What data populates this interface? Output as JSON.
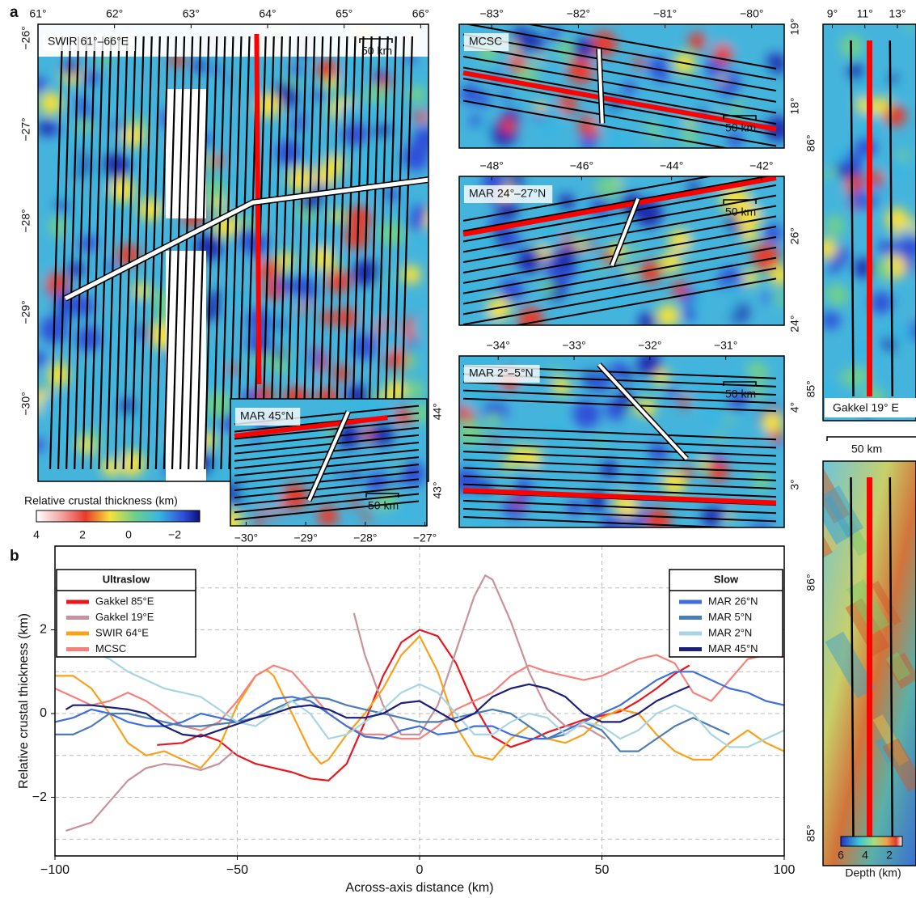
{
  "panel_a": {
    "label": "a",
    "maps": [
      {
        "title": "SWIR 61°–66°E",
        "top_ticks": [
          "61°",
          "62°",
          "63°",
          "64°",
          "65°",
          "66°"
        ],
        "left_ticks": [
          "−26°",
          "−27°",
          "−28°",
          "−29°",
          "−30°"
        ],
        "scale": "50 km"
      },
      {
        "title": "MAR 45°N",
        "bottom_ticks": [
          "−30°",
          "−29°",
          "−28°",
          "−27°"
        ],
        "right_ticks": [
          "44°",
          "43°"
        ],
        "scale": "50 km"
      },
      {
        "title": "MCSC",
        "top_ticks": [
          "−83°",
          "−82°",
          "−81°",
          "−80°"
        ],
        "right_ticks": [
          "19°",
          "18°"
        ],
        "scale": "50 km"
      },
      {
        "title": "MAR 24°–27°N",
        "top_ticks": [
          "−48°",
          "−46°",
          "−44°",
          "−42°"
        ],
        "right_ticks": [
          "26°",
          "24°"
        ],
        "scale": "50 km"
      },
      {
        "title": "MAR 2°–5°N",
        "top_ticks": [
          "−34°",
          "−33°",
          "−32°",
          "−31°"
        ],
        "right_ticks": [
          "4°",
          "3°"
        ],
        "scale": "50 km"
      },
      {
        "title": "Gakkel 19° E",
        "top_ticks": [
          "9°",
          "11°",
          "13°"
        ],
        "left_ticks": [
          "86°",
          "85°"
        ],
        "scale": "50 km"
      },
      {
        "left_ticks": [
          "86°",
          "85°"
        ]
      }
    ],
    "thickness_colorbar": {
      "title": "Relative crustal thickness (km)",
      "ticks": [
        "4",
        "2",
        "0",
        "−2"
      ]
    },
    "depth_colorbar": {
      "title": "Depth (km)",
      "ticks": [
        "6",
        "4",
        "2"
      ]
    }
  },
  "chart_data": {
    "type": "line",
    "panel_label": "b",
    "xlabel": "Across-axis distance (km)",
    "ylabel": "Relative crustal thickness (km)",
    "xlim": [
      -100,
      100
    ],
    "xticks": [
      {
        "value": -100,
        "label": "−100"
      },
      {
        "value": -50,
        "label": "−50"
      },
      0,
      50,
      100
    ],
    "ylim": [
      -3.4,
      4.0
    ],
    "yticks": [
      {
        "value": -2,
        "label": "−2"
      },
      0,
      2
    ],
    "yminor_grid": [
      -3,
      -1,
      1,
      3
    ],
    "grid": true,
    "series": [
      {
        "name": "Gakkel 85°E",
        "group": "Ultraslow",
        "color": "#e8171d",
        "x": [
          -72,
          -65,
          -60,
          -55,
          -50,
          -45,
          -40,
          -35,
          -30,
          -25,
          -20,
          -15,
          -10,
          -5,
          0,
          5,
          10,
          15,
          20,
          25,
          30,
          35,
          40,
          45,
          50,
          55,
          60,
          65,
          70,
          74
        ],
        "values": [
          -0.75,
          -0.7,
          -0.5,
          -0.65,
          -1.0,
          -1.2,
          -1.3,
          -1.4,
          -1.55,
          -1.6,
          -1.2,
          -0.2,
          0.9,
          1.7,
          2.0,
          1.85,
          1.2,
          0.2,
          -0.55,
          -0.8,
          -0.65,
          -0.45,
          -0.3,
          -0.15,
          -0.05,
          0.05,
          0.3,
          0.6,
          0.95,
          1.15
        ]
      },
      {
        "name": "Gakkel 19°E",
        "group": "Ultraslow",
        "color": "#c8919b",
        "x": [
          -97,
          -90,
          -85,
          -80,
          -75,
          -70,
          -65,
          -60,
          -55,
          -51,
          -34,
          -18,
          -15,
          -10,
          -5,
          0,
          5,
          10,
          15,
          18,
          20,
          25,
          30,
          35,
          40,
          45,
          51
        ],
        "values": [
          -2.8,
          -2.6,
          -2.1,
          -1.6,
          -1.3,
          -1.2,
          -1.25,
          -1.35,
          -1.2,
          -0.9,
          null,
          2.4,
          1.4,
          0.2,
          -0.5,
          -0.5,
          0.2,
          1.5,
          2.8,
          3.3,
          3.2,
          2.2,
          1.0,
          0.1,
          -0.3,
          -0.3,
          -0.6
        ]
      },
      {
        "name": "SWIR 64°E",
        "group": "Ultraslow",
        "color": "#f9a11b",
        "x": [
          -100,
          -95,
          -90,
          -85,
          -80,
          -75,
          -70,
          -65,
          -60,
          -55,
          -50,
          -45,
          -42,
          -40,
          -35,
          -30,
          -27,
          -25,
          -20,
          -15,
          -10,
          -5,
          0,
          5,
          10,
          15,
          20,
          25,
          30,
          35,
          40,
          45,
          50,
          55,
          60,
          65,
          70,
          75,
          80,
          85,
          90,
          95,
          100
        ],
        "values": [
          0.9,
          0.9,
          0.6,
          0.0,
          -0.7,
          -1.0,
          -0.9,
          -1.1,
          -1.3,
          -0.8,
          0.2,
          0.9,
          1.05,
          0.9,
          0.0,
          -0.9,
          -1.2,
          -1.1,
          -0.5,
          0.0,
          0.6,
          1.4,
          1.85,
          1.0,
          -0.3,
          -1.0,
          -1.1,
          -0.6,
          -0.3,
          -0.6,
          -0.7,
          -0.5,
          -0.1,
          0.1,
          0.0,
          -0.5,
          -0.9,
          -1.1,
          -1.1,
          -0.7,
          -0.4,
          -0.7,
          -0.9
        ]
      },
      {
        "name": "MCSC",
        "group": "Ultraslow",
        "color": "#f4827a",
        "x": [
          -100,
          -95,
          -90,
          -85,
          -80,
          -75,
          -70,
          -65,
          -60,
          -55,
          -50,
          -45,
          -40,
          -35,
          -30,
          -25,
          -20,
          -15,
          -10,
          -5,
          0,
          5,
          10,
          15,
          20,
          25,
          30,
          35,
          40,
          45,
          50,
          55,
          60,
          65,
          70,
          75,
          80,
          85,
          90,
          95,
          100
        ],
        "values": [
          0.6,
          0.4,
          0.2,
          0.3,
          0.5,
          0.3,
          0.0,
          -0.3,
          -0.4,
          -0.2,
          0.3,
          0.9,
          1.15,
          1.0,
          0.5,
          0.0,
          -0.3,
          -0.5,
          -0.5,
          -0.6,
          -0.6,
          -0.3,
          0.1,
          0.3,
          0.5,
          0.9,
          1.15,
          1.0,
          0.9,
          0.8,
          0.9,
          1.1,
          1.3,
          1.4,
          1.2,
          0.5,
          0.3,
          0.8,
          1.3,
          1.4,
          1.35
        ]
      },
      {
        "name": "MAR 26°N",
        "group": "Slow",
        "color": "#3f6fdc",
        "x": [
          -100,
          -95,
          -90,
          -85,
          -80,
          -75,
          -70,
          -65,
          -60,
          -55,
          -50,
          -45,
          -40,
          -35,
          -30,
          -25,
          -20,
          -15,
          -10,
          -5,
          0,
          5,
          10,
          15,
          20,
          25,
          30,
          35,
          40,
          45,
          50,
          55,
          60,
          65,
          70,
          75,
          80,
          85,
          90,
          95,
          100
        ],
        "values": [
          -0.2,
          -0.1,
          0.1,
          0.0,
          -0.2,
          -0.3,
          -0.3,
          -0.2,
          0.0,
          -0.1,
          -0.2,
          0.1,
          0.35,
          0.4,
          0.3,
          0.0,
          -0.3,
          -0.55,
          -0.6,
          -0.4,
          -0.3,
          -0.5,
          -0.45,
          -0.3,
          -0.3,
          -0.5,
          -0.6,
          -0.6,
          -0.4,
          -0.2,
          0.0,
          0.2,
          0.5,
          0.8,
          1.0,
          1.0,
          0.8,
          0.6,
          0.5,
          0.3,
          0.2
        ]
      },
      {
        "name": "MAR 5°N",
        "group": "Slow",
        "color": "#4a7db5",
        "x": [
          -100,
          -95,
          -90,
          -85,
          -80,
          -75,
          -70,
          -65,
          -60,
          -55,
          -50,
          -45,
          -40,
          -35,
          -30,
          -25,
          -20,
          -15,
          -10,
          -5,
          0,
          5,
          10,
          15,
          20,
          25,
          30,
          35,
          40,
          45,
          50,
          55,
          60,
          65,
          70,
          75,
          80,
          85
        ],
        "values": [
          -0.5,
          -0.5,
          -0.3,
          0.0,
          0.0,
          -0.1,
          -0.2,
          -0.3,
          -0.3,
          -0.25,
          -0.2,
          -0.1,
          0.1,
          0.3,
          0.4,
          0.35,
          0.2,
          0.1,
          0.0,
          -0.1,
          -0.2,
          -0.2,
          -0.1,
          0.0,
          0.1,
          0.0,
          -0.3,
          -0.6,
          -0.5,
          -0.2,
          -0.4,
          -0.9,
          -0.9,
          -0.6,
          -0.3,
          -0.1,
          -0.3,
          -0.5
        ]
      },
      {
        "name": "MAR 2°N",
        "group": "Slow",
        "color": "#a8d5e2",
        "x": [
          -100,
          -95,
          -90,
          -85,
          -80,
          -75,
          -70,
          -65,
          -60,
          -55,
          -50,
          -45,
          -40,
          -35,
          -30,
          -25,
          -20,
          -15,
          -10,
          -5,
          0,
          5,
          10,
          15,
          20,
          25,
          30,
          35,
          40,
          45,
          50,
          55,
          60,
          65,
          70,
          75,
          80,
          85,
          90,
          95,
          100
        ],
        "values": [
          1.35,
          1.4,
          1.5,
          1.3,
          1.0,
          0.8,
          0.6,
          0.5,
          0.4,
          0.1,
          -0.2,
          -0.3,
          0.0,
          0.3,
          0.0,
          -0.6,
          -0.5,
          -0.2,
          0.1,
          0.5,
          0.7,
          0.5,
          0.0,
          -0.5,
          -0.5,
          -0.2,
          0.0,
          -0.1,
          -0.5,
          -0.2,
          -0.3,
          -0.6,
          -0.4,
          0.0,
          0.2,
          0.0,
          -0.5,
          -0.8,
          -0.8,
          -0.6,
          -0.4
        ]
      },
      {
        "name": "MAR 45°N",
        "group": "Slow",
        "color": "#1a1f7a",
        "x": [
          -97,
          -95,
          -90,
          -85,
          -80,
          -75,
          -70,
          -65,
          -60,
          -55,
          -50,
          -45,
          -40,
          -35,
          -30,
          -25,
          -20,
          -15,
          -10,
          -5,
          0,
          5,
          10,
          15,
          20,
          25,
          30,
          35,
          40,
          45,
          50,
          55,
          60,
          65,
          70,
          74
        ],
        "values": [
          0.1,
          0.2,
          0.2,
          0.15,
          0.1,
          0.0,
          -0.3,
          -0.5,
          -0.55,
          -0.4,
          -0.25,
          -0.1,
          0.0,
          0.15,
          0.2,
          0.1,
          -0.1,
          -0.1,
          0.0,
          0.25,
          0.3,
          0.05,
          -0.2,
          0.0,
          0.4,
          0.6,
          0.7,
          0.6,
          0.4,
          0.0,
          -0.2,
          -0.2,
          0.0,
          0.3,
          0.5,
          0.65
        ]
      }
    ]
  }
}
